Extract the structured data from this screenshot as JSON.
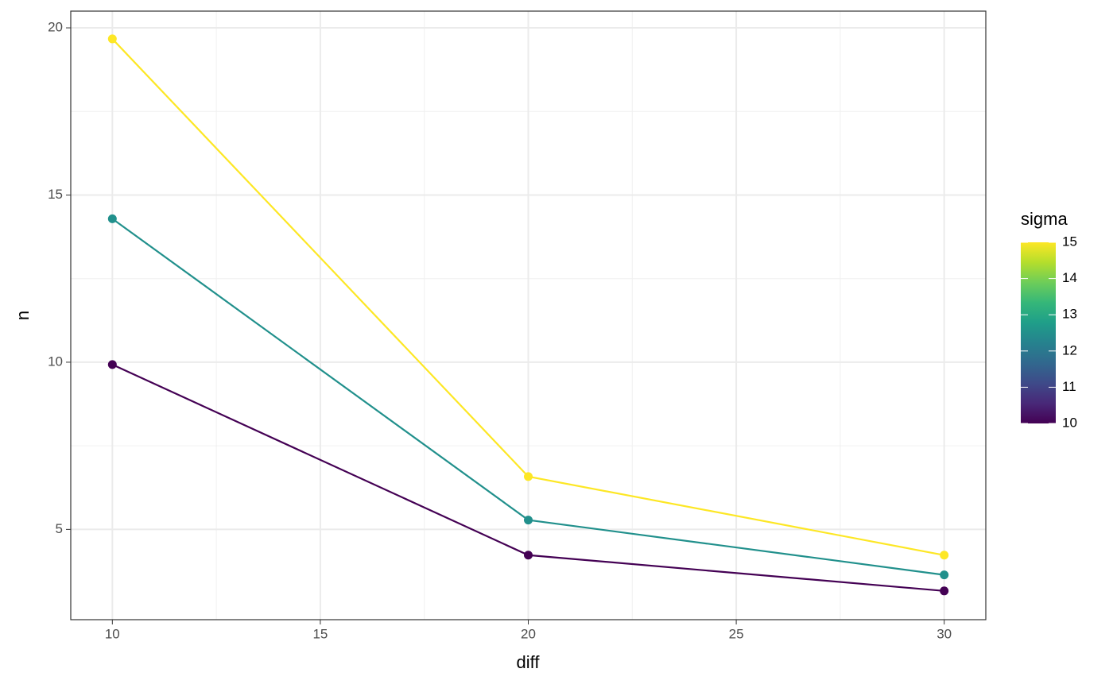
{
  "chart_data": {
    "type": "line",
    "x_label": "diff",
    "y_label": "n",
    "x": [
      10,
      20,
      30
    ],
    "series": [
      {
        "color": "#440154",
        "values": [
          9.93,
          4.23,
          3.16
        ]
      },
      {
        "color": "#21908C",
        "values": [
          14.29,
          5.28,
          3.64
        ]
      },
      {
        "color": "#FDE725",
        "values": [
          19.67,
          6.58,
          4.23
        ]
      }
    ],
    "xlim": [
      9,
      31
    ],
    "ylim": [
      2.3,
      20.5
    ],
    "xticks": [
      10,
      15,
      20,
      25,
      30
    ],
    "yticks": [
      5,
      10,
      15,
      20
    ],
    "minor_xticks": [
      12.5,
      17.5,
      22.5,
      27.5
    ],
    "minor_yticks": [
      7.5,
      12.5,
      17.5
    ],
    "grid": true,
    "legend": {
      "title": "sigma",
      "position": "right",
      "limits": [
        10,
        15
      ],
      "ticks": [
        10,
        11,
        12,
        13,
        14,
        15
      ],
      "colors": [
        "#440154",
        "#482878",
        "#3E4A89",
        "#31688E",
        "#26828E",
        "#1F9E89",
        "#35B779",
        "#6DCD59",
        "#B4DE2C",
        "#FDE725"
      ]
    }
  }
}
